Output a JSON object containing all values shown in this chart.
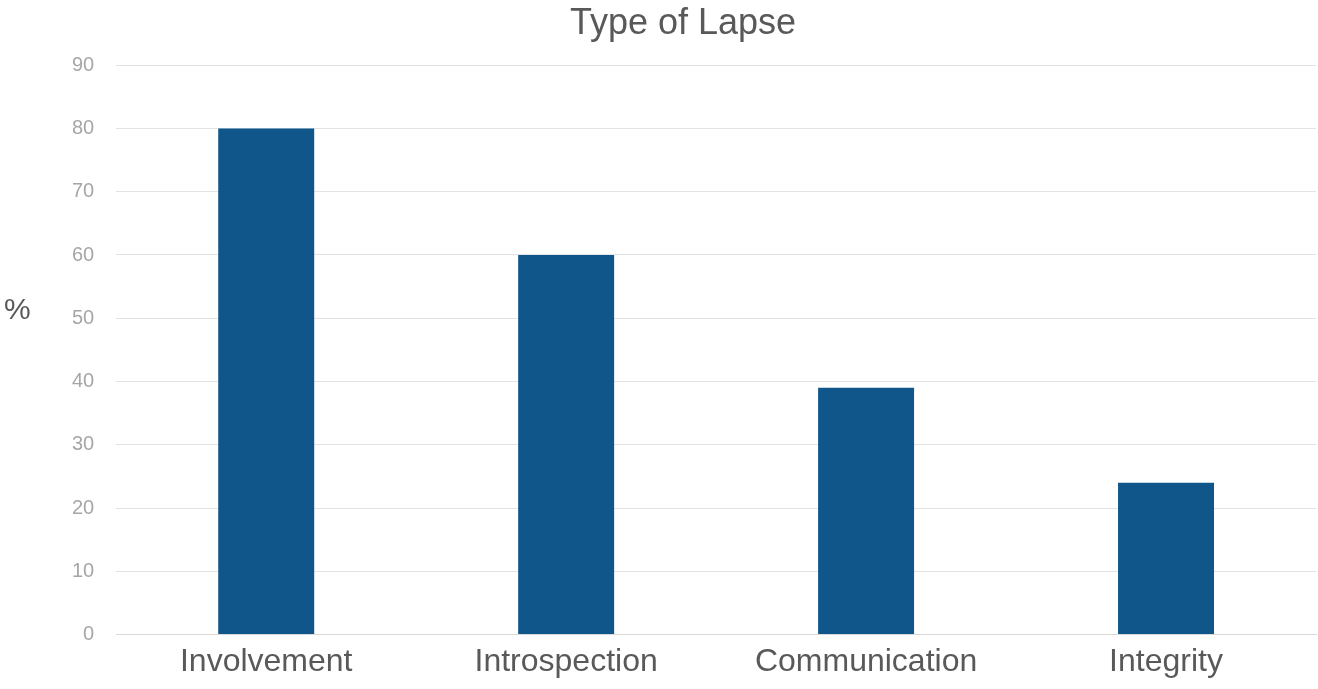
{
  "chart_data": {
    "type": "bar",
    "title": "Type of Lapse",
    "ylabel": "%",
    "categories": [
      "Involvement",
      "Introspection",
      "Communication",
      "Integrity"
    ],
    "values": [
      80,
      60,
      39,
      24
    ],
    "color": "#10568a",
    "ylim": [
      0,
      90
    ],
    "yticks": [
      0,
      10,
      20,
      30,
      40,
      50,
      60,
      70,
      80,
      90
    ],
    "grid": "y",
    "legend": false
  }
}
